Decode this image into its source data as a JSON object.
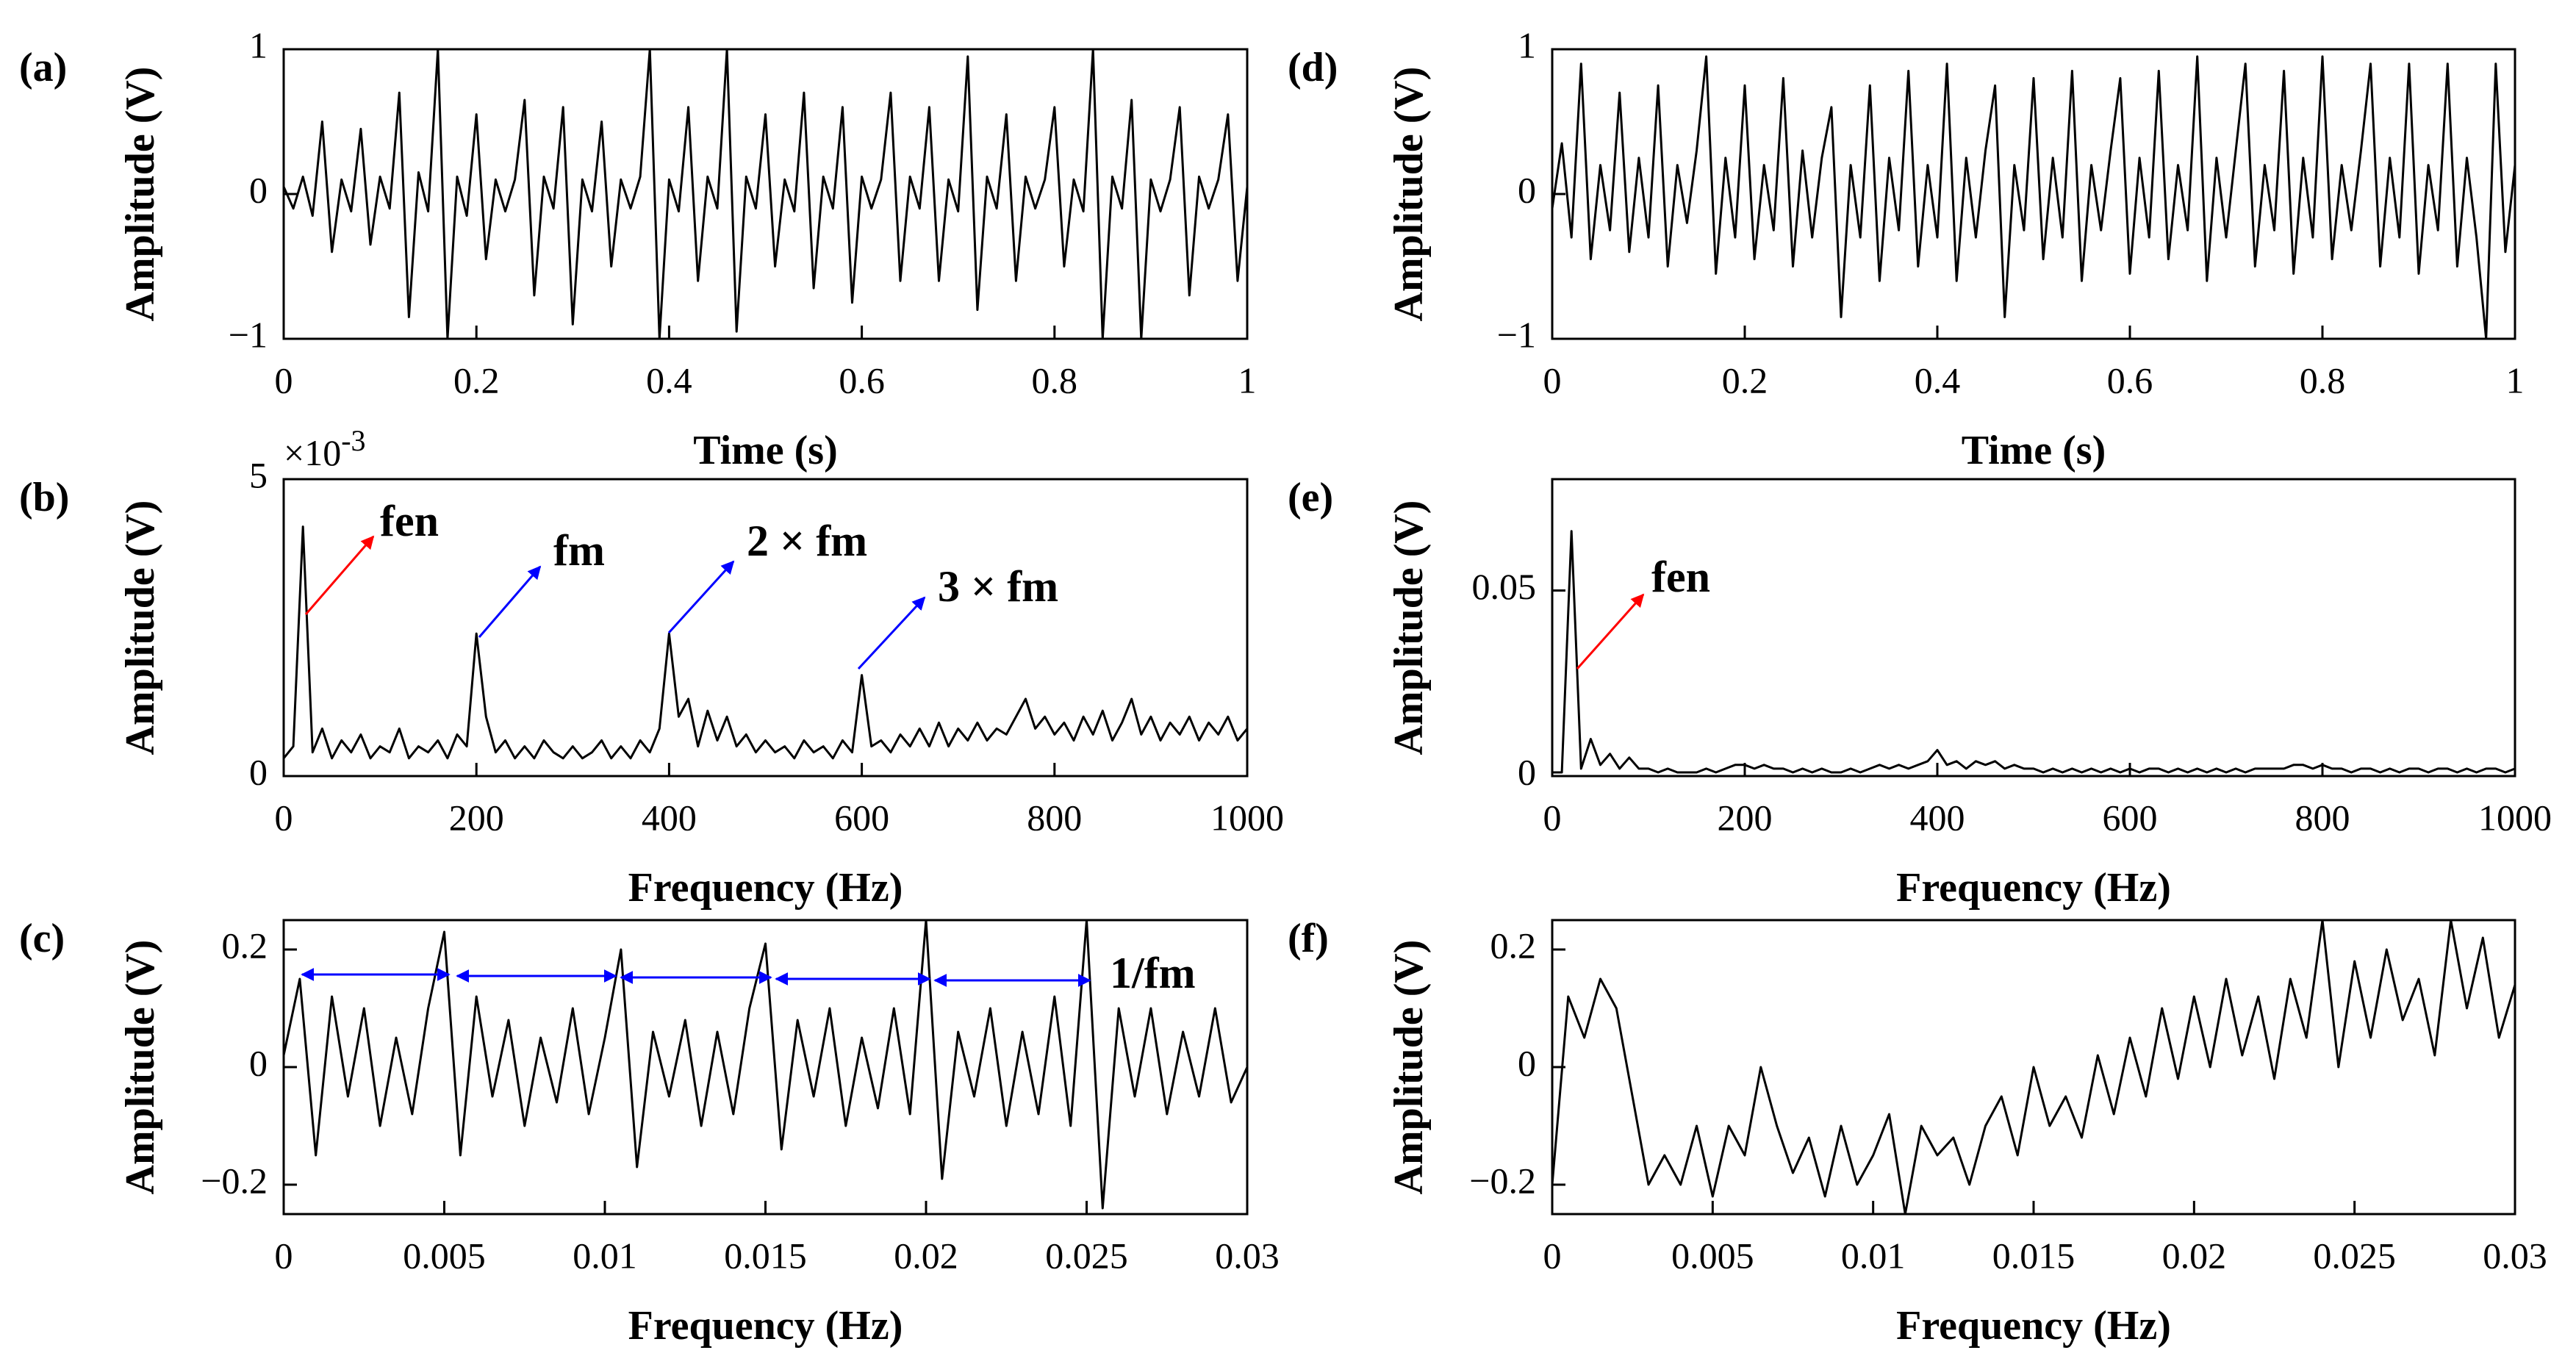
{
  "chart_data": [
    {
      "type": "line",
      "panel_label": "(a)",
      "ylabel": "Amplitude (V)",
      "xlabel": "Time (s)",
      "color": "#000000",
      "xlim": [
        0,
        1
      ],
      "xticks": [
        0,
        0.2,
        0.4,
        0.6,
        0.8,
        1
      ],
      "ylim": [
        -1,
        1
      ],
      "yticks": [
        {
          "value": -1,
          "label": "−1"
        },
        0,
        1
      ],
      "x": [
        0,
        0.01,
        0.02,
        0.03,
        0.04,
        0.05,
        0.06,
        0.07,
        0.08,
        0.09,
        0.1,
        0.11,
        0.12,
        0.13,
        0.14,
        0.15,
        0.16,
        0.17,
        0.18,
        0.19,
        0.2,
        0.21,
        0.22,
        0.23,
        0.24,
        0.25,
        0.26,
        0.27,
        0.28,
        0.29,
        0.3,
        0.31,
        0.32,
        0.33,
        0.34,
        0.35,
        0.36,
        0.37,
        0.38,
        0.39,
        0.4,
        0.41,
        0.42,
        0.43,
        0.44,
        0.45,
        0.46,
        0.47,
        0.48,
        0.49,
        0.5,
        0.51,
        0.52,
        0.53,
        0.54,
        0.55,
        0.56,
        0.57,
        0.58,
        0.59,
        0.6,
        0.61,
        0.62,
        0.63,
        0.64,
        0.65,
        0.66,
        0.67,
        0.68,
        0.69,
        0.7,
        0.71,
        0.72,
        0.73,
        0.74,
        0.75,
        0.76,
        0.77,
        0.78,
        0.79,
        0.8,
        0.81,
        0.82,
        0.83,
        0.84,
        0.85,
        0.86,
        0.87,
        0.88,
        0.89,
        0.9,
        0.91,
        0.92,
        0.93,
        0.94,
        0.95,
        0.96,
        0.97,
        0.98,
        0.99,
        1
      ],
      "values": [
        0.05,
        -0.1,
        0.12,
        -0.15,
        0.5,
        -0.4,
        0.1,
        -0.12,
        0.45,
        -0.35,
        0.12,
        -0.1,
        0.7,
        -0.85,
        0.15,
        -0.12,
        1.0,
        -1.0,
        0.12,
        -0.15,
        0.55,
        -0.45,
        0.1,
        -0.12,
        0.1,
        0.65,
        -0.7,
        0.12,
        -0.1,
        0.6,
        -0.9,
        0.1,
        -0.12,
        0.5,
        -0.5,
        0.1,
        -0.1,
        0.12,
        1.0,
        -1.0,
        0.1,
        -0.12,
        0.6,
        -0.6,
        0.12,
        -0.1,
        1.0,
        -0.95,
        0.12,
        -0.1,
        0.55,
        -0.5,
        0.1,
        -0.12,
        0.7,
        -0.65,
        0.12,
        -0.1,
        0.6,
        -0.75,
        0.12,
        -0.1,
        0.1,
        0.7,
        -0.6,
        0.12,
        -0.1,
        0.6,
        -0.6,
        0.1,
        -0.12,
        0.95,
        -0.8,
        0.12,
        -0.1,
        0.55,
        -0.6,
        0.12,
        -0.1,
        0.1,
        0.6,
        -0.5,
        0.1,
        -0.12,
        1.0,
        -1.0,
        0.12,
        -0.1,
        0.65,
        -1.0,
        0.1,
        -0.12,
        0.1,
        0.6,
        -0.7,
        0.12,
        -0.1,
        0.1,
        0.55,
        -0.6,
        0.05
      ]
    },
    {
      "type": "line",
      "panel_label": "(b)",
      "ylabel": "Amplitude (V)",
      "xlabel": "Frequency (Hz)",
      "color": "#000000",
      "y_multiplier": "×10",
      "y_multiplier_exponent": "-3",
      "xlim": [
        0,
        1000
      ],
      "xticks": [
        0,
        200,
        400,
        600,
        800,
        1000
      ],
      "ylim": [
        0,
        5
      ],
      "yticks": [
        0,
        5
      ],
      "annotations": [
        {
          "text": "fen",
          "color": "#ff0000"
        },
        {
          "text": "fm",
          "color": "#0000ff"
        },
        {
          "text": "2 × fm",
          "color": "#0000ff"
        },
        {
          "text": "3 × fm",
          "color": "#0000ff"
        }
      ],
      "x": [
        0,
        10,
        20,
        30,
        40,
        50,
        60,
        70,
        80,
        90,
        100,
        110,
        120,
        130,
        140,
        150,
        160,
        170,
        180,
        190,
        200,
        210,
        220,
        230,
        240,
        250,
        260,
        270,
        280,
        290,
        300,
        310,
        320,
        330,
        340,
        350,
        360,
        370,
        380,
        390,
        400,
        410,
        420,
        430,
        440,
        450,
        460,
        470,
        480,
        490,
        500,
        510,
        520,
        530,
        540,
        550,
        560,
        570,
        580,
        590,
        600,
        610,
        620,
        630,
        640,
        650,
        660,
        670,
        680,
        690,
        700,
        710,
        720,
        730,
        740,
        750,
        760,
        770,
        780,
        790,
        800,
        810,
        820,
        830,
        840,
        850,
        860,
        870,
        880,
        890,
        900,
        910,
        920,
        930,
        940,
        950,
        960,
        970,
        980,
        990,
        1000
      ],
      "values": [
        0.3,
        0.5,
        4.2,
        0.4,
        0.8,
        0.3,
        0.6,
        0.4,
        0.7,
        0.3,
        0.5,
        0.4,
        0.8,
        0.3,
        0.5,
        0.4,
        0.6,
        0.3,
        0.7,
        0.5,
        2.4,
        1.0,
        0.4,
        0.6,
        0.3,
        0.5,
        0.3,
        0.6,
        0.4,
        0.3,
        0.5,
        0.3,
        0.4,
        0.6,
        0.3,
        0.5,
        0.3,
        0.6,
        0.4,
        0.8,
        2.4,
        1.0,
        1.3,
        0.5,
        1.1,
        0.6,
        1.0,
        0.5,
        0.7,
        0.4,
        0.6,
        0.4,
        0.5,
        0.3,
        0.6,
        0.4,
        0.5,
        0.3,
        0.6,
        0.4,
        1.7,
        0.5,
        0.6,
        0.4,
        0.7,
        0.5,
        0.8,
        0.5,
        0.9,
        0.5,
        0.8,
        0.6,
        0.9,
        0.6,
        0.8,
        0.7,
        1.0,
        1.3,
        0.8,
        1.0,
        0.7,
        0.9,
        0.6,
        1.0,
        0.7,
        1.1,
        0.6,
        0.9,
        1.3,
        0.7,
        1.0,
        0.6,
        0.9,
        0.7,
        1.0,
        0.6,
        0.9,
        0.7,
        1.0,
        0.6,
        0.8
      ]
    },
    {
      "type": "line",
      "panel_label": "(c)",
      "ylabel": "Amplitude (V)",
      "xlabel": "Frequency (Hz)",
      "color": "#000000",
      "xlim": [
        0,
        0.03
      ],
      "xticks": [
        0,
        0.005,
        0.01,
        0.015,
        0.02,
        0.025,
        0.03
      ],
      "ylim": [
        -0.25,
        0.25
      ],
      "yticks": [
        {
          "value": -0.2,
          "label": "−0.2"
        },
        0,
        0.2
      ],
      "annotations": [
        {
          "text": "1/fm",
          "color": "#0000ff"
        }
      ],
      "x": [
        0,
        0.0005,
        0.001,
        0.0015,
        0.002,
        0.0025,
        0.003,
        0.0035,
        0.004,
        0.0045,
        0.005,
        0.0055,
        0.006,
        0.0065,
        0.007,
        0.0075,
        0.008,
        0.0085,
        0.009,
        0.0095,
        0.01,
        0.0105,
        0.011,
        0.0115,
        0.012,
        0.0125,
        0.013,
        0.0135,
        0.014,
        0.0145,
        0.015,
        0.0155,
        0.016,
        0.0165,
        0.017,
        0.0175,
        0.018,
        0.0185,
        0.019,
        0.0195,
        0.02,
        0.0205,
        0.021,
        0.0215,
        0.022,
        0.0225,
        0.023,
        0.0235,
        0.024,
        0.0245,
        0.025,
        0.0255,
        0.026,
        0.0265,
        0.027,
        0.0275,
        0.028,
        0.0285,
        0.029,
        0.0295,
        0.03
      ],
      "values": [
        0.02,
        0.15,
        -0.15,
        0.12,
        -0.05,
        0.1,
        -0.1,
        0.05,
        -0.08,
        0.1,
        0.23,
        -0.15,
        0.12,
        -0.05,
        0.08,
        -0.1,
        0.05,
        -0.06,
        0.1,
        -0.08,
        0.05,
        0.2,
        -0.17,
        0.06,
        -0.05,
        0.08,
        -0.1,
        0.06,
        -0.08,
        0.1,
        0.21,
        -0.14,
        0.08,
        -0.05,
        0.1,
        -0.1,
        0.05,
        -0.07,
        0.1,
        -0.08,
        0.25,
        -0.19,
        0.06,
        -0.05,
        0.1,
        -0.1,
        0.06,
        -0.08,
        0.12,
        -0.1,
        0.25,
        -0.24,
        0.1,
        -0.05,
        0.1,
        -0.08,
        0.06,
        -0.05,
        0.1,
        -0.06,
        0.0
      ]
    },
    {
      "type": "line",
      "panel_label": "(d)",
      "ylabel": "Amplitude (V)",
      "xlabel": "Time (s)",
      "color": "#000000",
      "xlim": [
        0,
        1
      ],
      "xticks": [
        0,
        0.2,
        0.4,
        0.6,
        0.8,
        1
      ],
      "ylim": [
        -1,
        1
      ],
      "yticks": [
        {
          "value": -1,
          "label": "−1"
        },
        0,
        1
      ],
      "x": [
        0,
        0.01,
        0.02,
        0.03,
        0.04,
        0.05,
        0.06,
        0.07,
        0.08,
        0.09,
        0.1,
        0.11,
        0.12,
        0.13,
        0.14,
        0.15,
        0.16,
        0.17,
        0.18,
        0.19,
        0.2,
        0.21,
        0.22,
        0.23,
        0.24,
        0.25,
        0.26,
        0.27,
        0.28,
        0.29,
        0.3,
        0.31,
        0.32,
        0.33,
        0.34,
        0.35,
        0.36,
        0.37,
        0.38,
        0.39,
        0.4,
        0.41,
        0.42,
        0.43,
        0.44,
        0.45,
        0.46,
        0.47,
        0.48,
        0.49,
        0.5,
        0.51,
        0.52,
        0.53,
        0.54,
        0.55,
        0.56,
        0.57,
        0.58,
        0.59,
        0.6,
        0.61,
        0.62,
        0.63,
        0.64,
        0.65,
        0.66,
        0.67,
        0.68,
        0.69,
        0.7,
        0.71,
        0.72,
        0.73,
        0.74,
        0.75,
        0.76,
        0.77,
        0.78,
        0.79,
        0.8,
        0.81,
        0.82,
        0.83,
        0.84,
        0.85,
        0.86,
        0.87,
        0.88,
        0.89,
        0.9,
        0.91,
        0.92,
        0.93,
        0.94,
        0.95,
        0.96,
        0.97,
        0.98,
        0.99,
        1
      ],
      "values": [
        -0.1,
        0.35,
        -0.3,
        0.9,
        -0.45,
        0.2,
        -0.25,
        0.7,
        -0.4,
        0.25,
        -0.3,
        0.75,
        -0.5,
        0.2,
        -0.2,
        0.3,
        0.95,
        -0.55,
        0.25,
        -0.3,
        0.75,
        -0.45,
        0.2,
        -0.25,
        0.8,
        -0.5,
        0.3,
        -0.3,
        0.25,
        0.6,
        -0.85,
        0.2,
        -0.3,
        0.75,
        -0.6,
        0.25,
        -0.25,
        0.85,
        -0.5,
        0.2,
        -0.3,
        0.9,
        -0.6,
        0.25,
        -0.3,
        0.3,
        0.75,
        -0.85,
        0.2,
        -0.25,
        0.8,
        -0.45,
        0.25,
        -0.3,
        0.85,
        -0.6,
        0.2,
        -0.25,
        0.3,
        0.8,
        -0.55,
        0.25,
        -0.3,
        0.85,
        -0.45,
        0.2,
        -0.25,
        0.95,
        -0.6,
        0.25,
        -0.3,
        0.3,
        0.9,
        -0.5,
        0.2,
        -0.25,
        0.85,
        -0.55,
        0.25,
        -0.3,
        0.95,
        -0.45,
        0.2,
        -0.25,
        0.3,
        0.9,
        -0.5,
        0.25,
        -0.3,
        0.9,
        -0.55,
        0.2,
        -0.25,
        0.9,
        -0.5,
        0.25,
        -0.3,
        -1.0,
        0.9,
        -0.4,
        0.2
      ]
    },
    {
      "type": "line",
      "panel_label": "(e)",
      "ylabel": "Amplitude (V)",
      "xlabel": "Frequency (Hz)",
      "color": "#000000",
      "xlim": [
        0,
        1000
      ],
      "xticks": [
        0,
        200,
        400,
        600,
        800,
        1000
      ],
      "ylim": [
        0,
        0.08
      ],
      "yticks": [
        0,
        0.05
      ],
      "annotations": [
        {
          "text": "fen",
          "color": "#ff0000"
        }
      ],
      "x": [
        0,
        10,
        20,
        30,
        40,
        50,
        60,
        70,
        80,
        90,
        100,
        110,
        120,
        130,
        140,
        150,
        160,
        170,
        180,
        190,
        200,
        210,
        220,
        230,
        240,
        250,
        260,
        270,
        280,
        290,
        300,
        310,
        320,
        330,
        340,
        350,
        360,
        370,
        380,
        390,
        400,
        410,
        420,
        430,
        440,
        450,
        460,
        470,
        480,
        490,
        500,
        510,
        520,
        530,
        540,
        550,
        560,
        570,
        580,
        590,
        600,
        610,
        620,
        630,
        640,
        650,
        660,
        670,
        680,
        690,
        700,
        710,
        720,
        730,
        740,
        750,
        760,
        770,
        780,
        790,
        800,
        810,
        820,
        830,
        840,
        850,
        860,
        870,
        880,
        890,
        900,
        910,
        920,
        930,
        940,
        950,
        960,
        970,
        980,
        990,
        1000
      ],
      "values": [
        0.001,
        0.001,
        0.066,
        0.002,
        0.01,
        0.003,
        0.006,
        0.002,
        0.005,
        0.002,
        0.002,
        0.001,
        0.002,
        0.001,
        0.001,
        0.001,
        0.002,
        0.001,
        0.002,
        0.003,
        0.003,
        0.002,
        0.003,
        0.002,
        0.002,
        0.001,
        0.002,
        0.001,
        0.002,
        0.001,
        0.001,
        0.002,
        0.001,
        0.002,
        0.003,
        0.002,
        0.003,
        0.002,
        0.003,
        0.004,
        0.007,
        0.003,
        0.004,
        0.002,
        0.004,
        0.003,
        0.004,
        0.002,
        0.003,
        0.002,
        0.002,
        0.001,
        0.002,
        0.001,
        0.002,
        0.001,
        0.002,
        0.001,
        0.002,
        0.001,
        0.002,
        0.001,
        0.002,
        0.002,
        0.001,
        0.002,
        0.001,
        0.002,
        0.001,
        0.002,
        0.001,
        0.002,
        0.001,
        0.002,
        0.002,
        0.002,
        0.002,
        0.003,
        0.003,
        0.002,
        0.003,
        0.002,
        0.002,
        0.001,
        0.002,
        0.002,
        0.001,
        0.002,
        0.001,
        0.002,
        0.002,
        0.001,
        0.002,
        0.002,
        0.001,
        0.002,
        0.001,
        0.002,
        0.002,
        0.001,
        0.002
      ]
    },
    {
      "type": "line",
      "panel_label": "(f)",
      "ylabel": "Amplitude (V)",
      "xlabel": "Frequency (Hz)",
      "color": "#000000",
      "xlim": [
        0,
        0.03
      ],
      "xticks": [
        0,
        0.005,
        0.01,
        0.015,
        0.02,
        0.025,
        0.03
      ],
      "ylim": [
        -0.25,
        0.25
      ],
      "yticks": [
        {
          "value": -0.2,
          "label": "−0.2"
        },
        0,
        0.2
      ],
      "x": [
        0,
        0.0005,
        0.001,
        0.0015,
        0.002,
        0.0025,
        0.003,
        0.0035,
        0.004,
        0.0045,
        0.005,
        0.0055,
        0.006,
        0.0065,
        0.007,
        0.0075,
        0.008,
        0.0085,
        0.009,
        0.0095,
        0.01,
        0.0105,
        0.011,
        0.0115,
        0.012,
        0.0125,
        0.013,
        0.0135,
        0.014,
        0.0145,
        0.015,
        0.0155,
        0.016,
        0.0165,
        0.017,
        0.0175,
        0.018,
        0.0185,
        0.019,
        0.0195,
        0.02,
        0.0205,
        0.021,
        0.0215,
        0.022,
        0.0225,
        0.023,
        0.0235,
        0.024,
        0.0245,
        0.025,
        0.0255,
        0.026,
        0.0265,
        0.027,
        0.0275,
        0.028,
        0.0285,
        0.029,
        0.0295,
        0.03
      ],
      "values": [
        -0.2,
        0.12,
        0.05,
        0.15,
        0.1,
        -0.05,
        -0.2,
        -0.15,
        -0.2,
        -0.1,
        -0.22,
        -0.1,
        -0.15,
        0.0,
        -0.1,
        -0.18,
        -0.12,
        -0.22,
        -0.1,
        -0.2,
        -0.15,
        -0.08,
        -0.25,
        -0.1,
        -0.15,
        -0.12,
        -0.2,
        -0.1,
        -0.05,
        -0.15,
        0.0,
        -0.1,
        -0.05,
        -0.12,
        0.02,
        -0.08,
        0.05,
        -0.05,
        0.1,
        -0.02,
        0.12,
        0.0,
        0.15,
        0.02,
        0.12,
        -0.02,
        0.15,
        0.05,
        0.25,
        0.0,
        0.18,
        0.05,
        0.2,
        0.08,
        0.15,
        0.02,
        0.25,
        0.1,
        0.22,
        0.05,
        0.14
      ]
    }
  ]
}
